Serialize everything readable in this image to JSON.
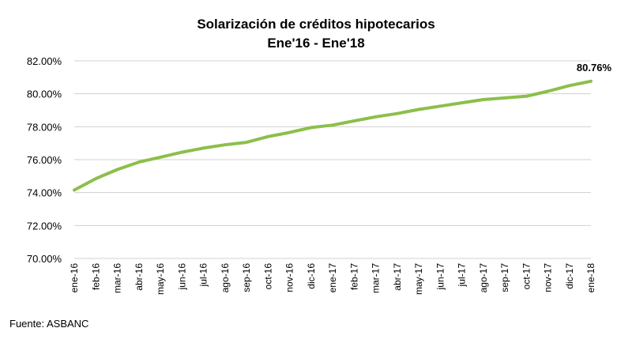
{
  "chart_data": {
    "type": "line",
    "title": "Solarización de créditos hipotecarios",
    "subtitle": "Ene'16 - Ene'18",
    "categories": [
      "ene-16",
      "feb-16",
      "mar-16",
      "abr-16",
      "may-16",
      "jun-16",
      "jul-16",
      "ago-16",
      "sep-16",
      "oct-16",
      "nov-16",
      "dic-16",
      "ene-17",
      "feb-17",
      "mar-17",
      "abr-17",
      "may-17",
      "jun-17",
      "jul-17",
      "ago-17",
      "sep-17",
      "oct-17",
      "nov-17",
      "dic-17",
      "ene-18"
    ],
    "series": [
      {
        "values": [
          74.15,
          74.85,
          75.4,
          75.85,
          76.15,
          76.45,
          76.7,
          76.9,
          77.05,
          77.4,
          77.65,
          77.95,
          78.1,
          78.35,
          78.6,
          78.8,
          79.05,
          79.25,
          79.45,
          79.65,
          79.75,
          79.85,
          80.15,
          80.5,
          80.76
        ]
      }
    ],
    "ylim": [
      70,
      82
    ],
    "yticks": [
      70,
      72,
      74,
      76,
      78,
      80,
      82
    ],
    "ytick_labels": [
      "70.00%",
      "72.00%",
      "74.00%",
      "76.00%",
      "78.00%",
      "80.00%",
      "82.00%"
    ],
    "grid": true,
    "last_point_label": "80.76%",
    "line_color": "#8cbf4a",
    "grid_color": "#d0d0d0"
  },
  "source": "Fuente: ASBANC"
}
